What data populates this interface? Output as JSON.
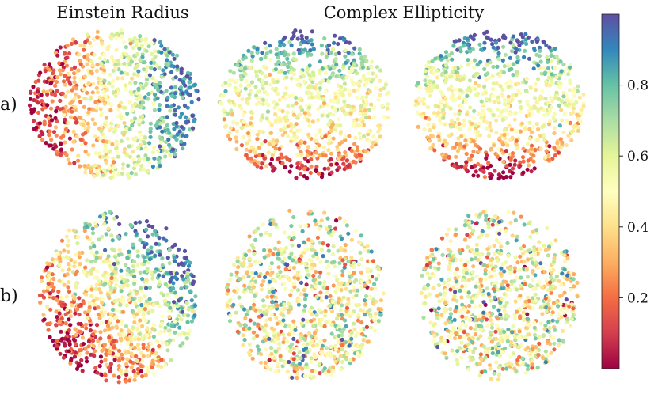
{
  "chart_data": {
    "type": "scatter",
    "column_titles": [
      "Einstein Radius",
      "Complex Ellipticity"
    ],
    "row_labels": [
      "a)",
      "b)"
    ],
    "colorbar": {
      "colormap": "Spectral",
      "range": [
        0,
        1
      ],
      "ticks": [
        0.2,
        0.4,
        0.6,
        0.8
      ],
      "tick_labels": [
        "0.2",
        "0.4",
        "0.6",
        "0.8"
      ],
      "stops": [
        "#9e0142",
        "#d53e4f",
        "#f46d43",
        "#fdae61",
        "#fee08b",
        "#ffffbf",
        "#e6f598",
        "#abdda4",
        "#66c2a5",
        "#3288bd",
        "#5e4fa2"
      ]
    },
    "panels": [
      {
        "row": "a)",
        "column": "Einstein Radius",
        "pattern": "gradient left-to-right: red on left, yellow center, blue on right"
      },
      {
        "row": "a)",
        "column": "Complex Ellipticity",
        "pattern": "yellow horizontal band, blue top, red bottom"
      },
      {
        "row": "a)",
        "column": "Complex Ellipticity",
        "pattern": "yellow horizontal band, blue top, red bottom"
      },
      {
        "row": "b)",
        "column": "Einstein Radius",
        "pattern": "red bottom-left, blue top-right"
      },
      {
        "row": "b)",
        "column": "Complex Ellipticity",
        "pattern": "mixed, mostly yellow"
      },
      {
        "row": "b)",
        "column": "Complex Ellipticity",
        "pattern": "mixed, mostly yellow"
      }
    ],
    "grid": false
  }
}
